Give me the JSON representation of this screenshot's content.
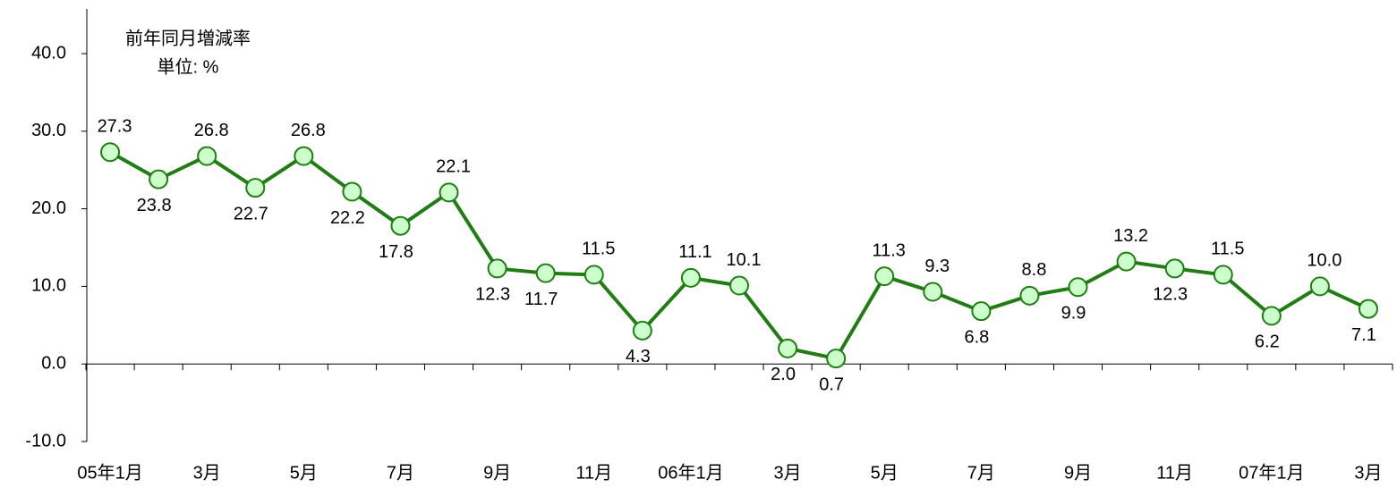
{
  "chart_data": {
    "type": "line",
    "annotations": [
      "前年同月増減率",
      "単位: %"
    ],
    "categories": [
      "05年1月",
      null,
      "3月",
      null,
      "5月",
      null,
      "7月",
      null,
      "9月",
      null,
      "11月",
      null,
      "06年1月",
      null,
      "3月",
      null,
      "5月",
      null,
      "7月",
      null,
      "9月",
      null,
      "11月",
      null,
      "07年1月",
      null,
      "3月"
    ],
    "series": [
      {
        "name": "前年同月増減率",
        "color": "#1f7d12",
        "marker_fill": "#ccffcc",
        "values": [
          27.3,
          23.8,
          26.8,
          22.7,
          26.8,
          22.2,
          17.8,
          22.1,
          12.3,
          11.7,
          11.5,
          4.3,
          11.1,
          10.1,
          2.0,
          0.7,
          11.3,
          9.3,
          6.8,
          8.8,
          9.9,
          13.2,
          12.3,
          11.5,
          6.2,
          10.0,
          7.1
        ],
        "value_labels": [
          "27.3",
          "23.8",
          "26.8",
          "22.7",
          "26.8",
          "22.2",
          "17.8",
          "22.1",
          "12.3",
          "11.7",
          "11.5",
          "4.3",
          "11.1",
          "10.1",
          "2.0",
          "0.7",
          "11.3",
          "9.3",
          "6.8",
          "8.8",
          "9.9",
          "13.2",
          "12.3",
          "11.5",
          "6.2",
          "10.0",
          "7.1"
        ]
      }
    ],
    "ylim": [
      -10,
      40
    ],
    "yticks": [
      {
        "value": -10,
        "label": "-10.0"
      },
      {
        "value": 0,
        "label": "0.0"
      },
      {
        "value": 10,
        "label": "10.0"
      },
      {
        "value": 20,
        "label": "20.0"
      },
      {
        "value": 30,
        "label": "30.0"
      },
      {
        "value": 40,
        "label": "40.0"
      }
    ],
    "grid": false
  }
}
